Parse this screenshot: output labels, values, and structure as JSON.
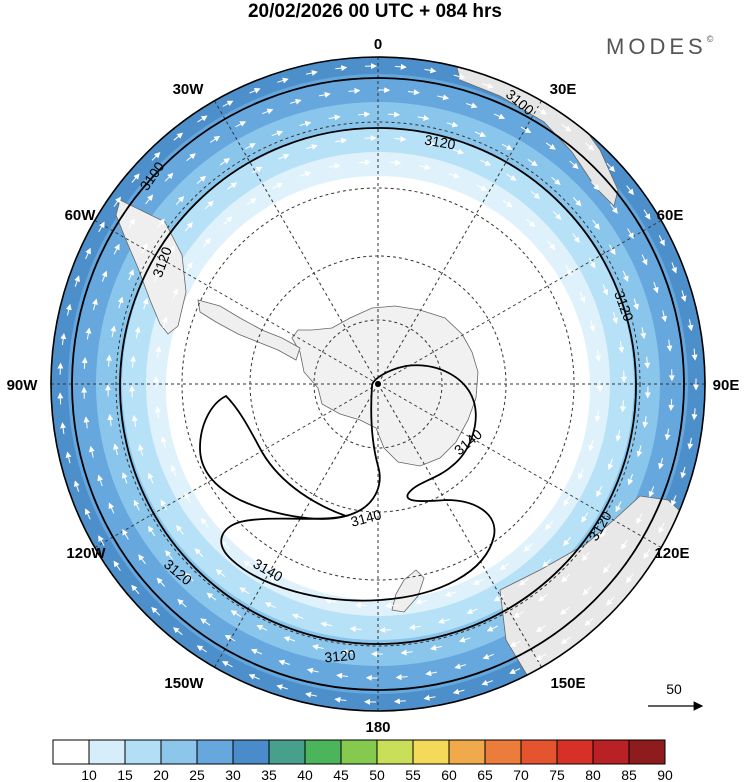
{
  "title": "20/02/2026  00 UTC  + 084 hrs",
  "brand": {
    "name": "MODES",
    "mark": "©"
  },
  "map": {
    "projection": "south-polar-stereographic",
    "longitude_labels": [
      "0",
      "30E",
      "60E",
      "90E",
      "120E",
      "150E",
      "180",
      "150W",
      "120W",
      "90W",
      "60W",
      "30W"
    ],
    "contour_labels": [
      "3100",
      "3100",
      "3120",
      "3120",
      "3120",
      "3120",
      "3120",
      "3120",
      "3140",
      "3140",
      "3140"
    ],
    "shading_colors": [
      "#ffffff",
      "#dff2fb",
      "#b6e1f7",
      "#8ac6ec",
      "#66a7de",
      "#4c8fcb"
    ]
  },
  "vector_reference": {
    "label": "50"
  },
  "colorbar": {
    "ticks": [
      "10",
      "15",
      "20",
      "25",
      "30",
      "35",
      "40",
      "45",
      "50",
      "55",
      "60",
      "65",
      "70",
      "75",
      "80",
      "85",
      "90"
    ],
    "colors": [
      "#ffffff",
      "#d6eefa",
      "#b2def6",
      "#8cc6eb",
      "#66a7de",
      "#4a8ccb",
      "#46a08b",
      "#4cb45b",
      "#86c94f",
      "#c9df5a",
      "#f4d95a",
      "#f0aa4b",
      "#ec7c3c",
      "#e4552f",
      "#d73027",
      "#b92126",
      "#8e1c1e"
    ]
  }
}
